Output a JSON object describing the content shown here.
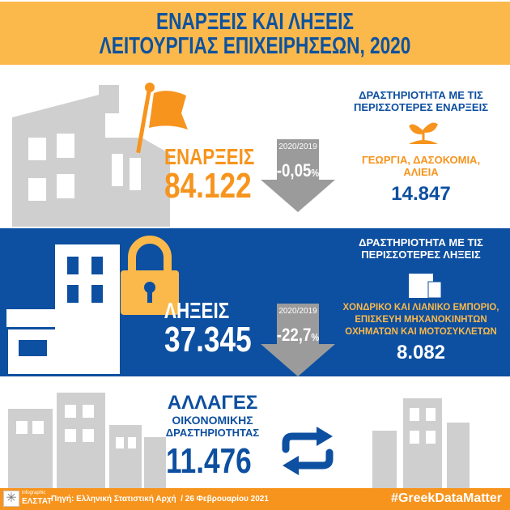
{
  "header": {
    "title_line1": "ΕΝΑΡΞΕΙΣ ΚΑΙ ΛΗΞΕΙΣ",
    "title_line2": "ΛΕΙΤΟΥΡΓΙΑΣ ΕΠΙΧΕΙΡΗΣΕΩΝ, 2020"
  },
  "openings": {
    "label": "ΕΝΑΡΞΕΙΣ",
    "value": "84.122",
    "period": "2020/2019",
    "change": "-0,05",
    "unit": "%",
    "top_heading_1": "ΔΡΑΣΤΗΡΙΟΤΗΤΑ ΜΕ ΤΙΣ",
    "top_heading_2": "ΠΕΡΙΣΣΟΤΕΡΕΣ ΕΝΑΡΞΕΙΣ",
    "top_activity_1": "ΓΕΩΡΓΙΑ, ΔΑΣΟΚΟΜΙΑ,",
    "top_activity_2": "ΑΛΙΕΙΑ",
    "top_value": "14.847"
  },
  "closures": {
    "label": "ΛΗΞΕΙΣ",
    "value": "37.345",
    "period": "2020/2019",
    "change": "-22,7",
    "unit": "%",
    "top_heading_1": "ΔΡΑΣΤΗΡΙΟΤΗΤΑ ΜΕ ΤΙΣ",
    "top_heading_2": "ΠΕΡΙΣΣΟΤΕΡΕΣ ΛΗΞΕΙΣ",
    "top_activity_1": "ΧΟΝΔΡΙΚΟ ΚΑΙ ΛΙΑΝΙΚΟ ΕΜΠΟΡΙΟ,",
    "top_activity_2": "ΕΠΙΣΚΕΥΗ ΜΗΧΑΝΟΚΙΝΗΤΩΝ",
    "top_activity_3": "ΟΧΗΜΑΤΩΝ ΚΑΙ ΜΟΤΟΣΥΚΛΕΤΩΝ",
    "top_value": "8.082"
  },
  "changes": {
    "label_1": "ΑΛΛΑΓΕΣ",
    "label_2": "ΟΙΚΟΝΟΜΙΚΗΣ",
    "label_3": "ΔΡΑΣΤΗΡΙΟΤΗΤΑΣ",
    "value": "11.476"
  },
  "footer": {
    "logo_small": "infographic",
    "logo_name": "ΕΛΣΤΑΤ",
    "source": "Πηγή: Ελληνική Στατιστική Αρχή  / 26 Φεβρουαρίου 2021",
    "hashtag": "#GreekDataMatter"
  },
  "colors": {
    "blue": "#0d4fa0",
    "orange": "#f7941d",
    "header_bg": "#fbb94b",
    "yellow_text": "#fbb94b",
    "gray": "#cfcfcf"
  },
  "icons": [
    "flag-icon",
    "building-icon",
    "plant-icon",
    "lock-icon",
    "shop-icon",
    "shopping-bag-icon",
    "swap-arrows-icon",
    "down-arrow-icon"
  ]
}
